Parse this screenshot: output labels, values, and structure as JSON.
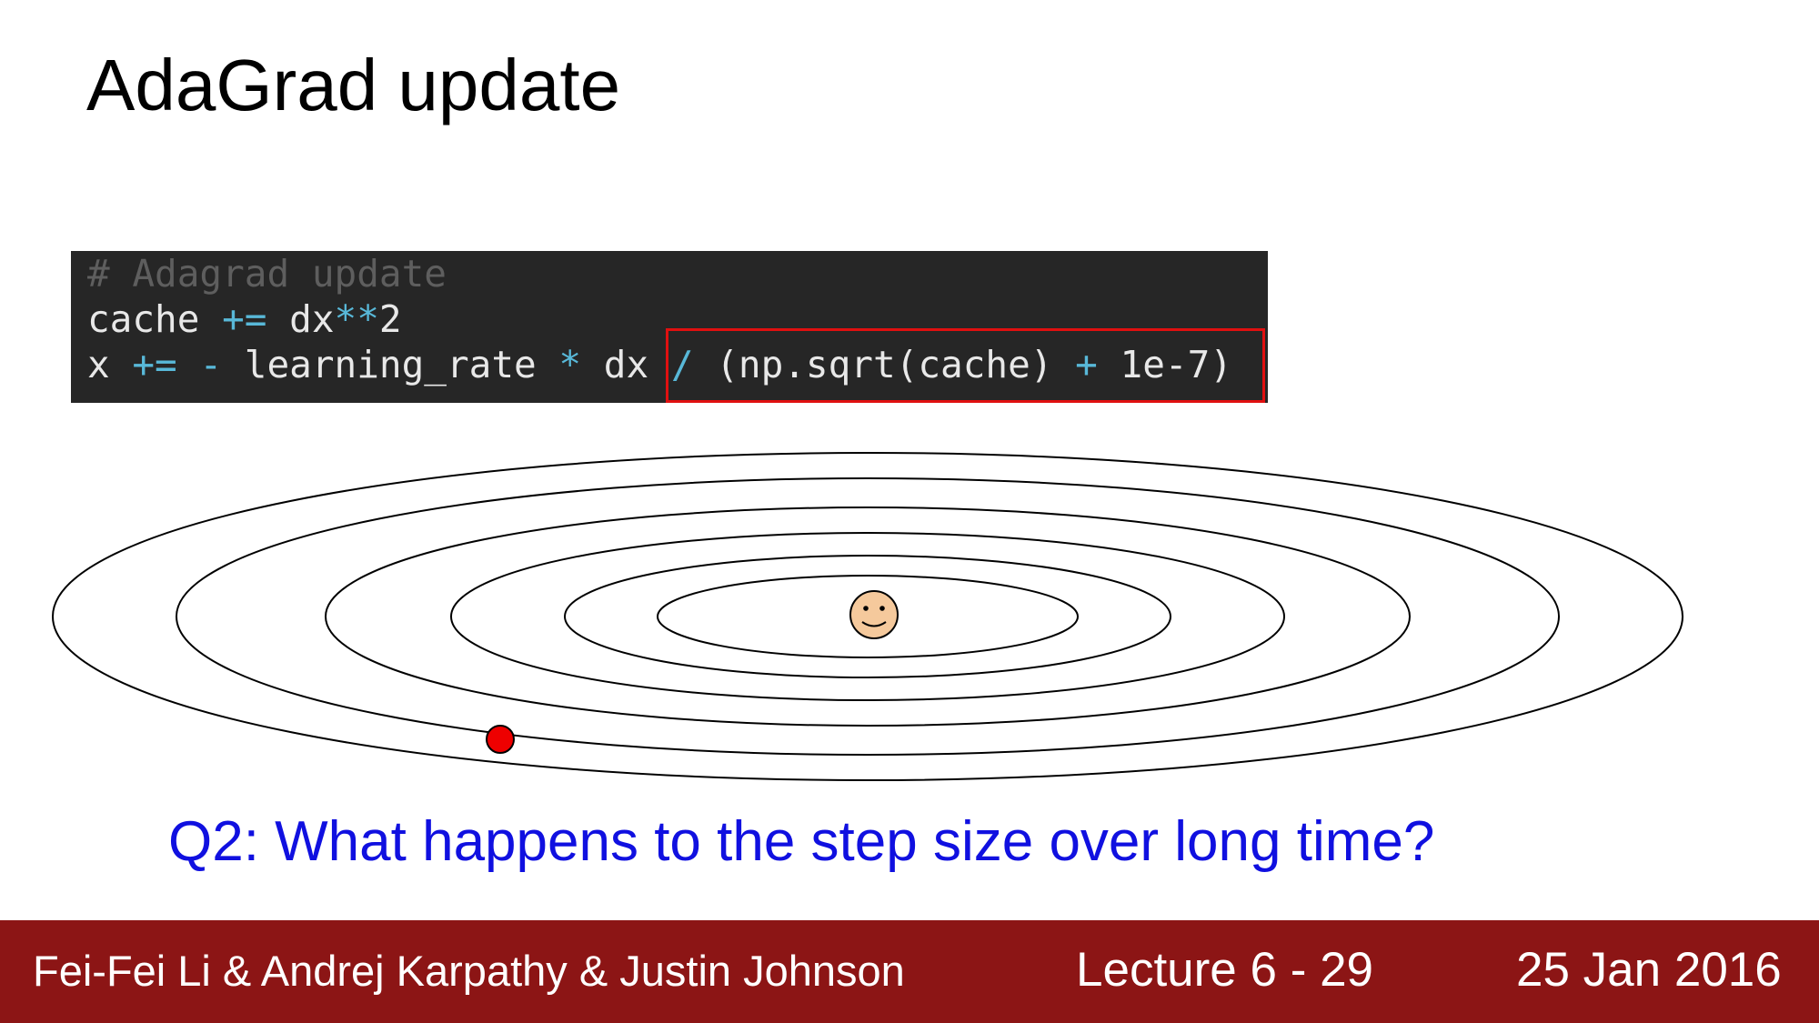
{
  "slide": {
    "title": "AdaGrad update",
    "question": "Q2: What happens to the step size over long time?"
  },
  "code": {
    "line1": {
      "comment": "# Adagrad update"
    },
    "line2": {
      "a": "cache ",
      "op1": "+=",
      "b": " dx",
      "op2": "**",
      "c": "2"
    },
    "line3": {
      "a": "x ",
      "op1": "+=",
      "sp1": " ",
      "op2": "-",
      "b": " learning_rate ",
      "op3": "*",
      "c": " dx ",
      "op4": "/",
      "d": " (np.sqrt(cache) ",
      "op5": "+",
      "e": " 1e-7)"
    }
  },
  "colors": {
    "code_background": "#262626",
    "highlight_box": "#e01010",
    "question_text": "#1010e0",
    "footer_background": "#8c1515",
    "current_point": "#ee0000",
    "smiley_face": "#f5c99c"
  },
  "icons": {
    "minimum_marker": "smiley-face-icon",
    "current_position": "red-dot"
  },
  "footer": {
    "authors": "Fei-Fei Li & Andrej Karpathy & Justin Johnson",
    "lecture": "Lecture 6 - 29",
    "date": "25 Jan 2016"
  }
}
